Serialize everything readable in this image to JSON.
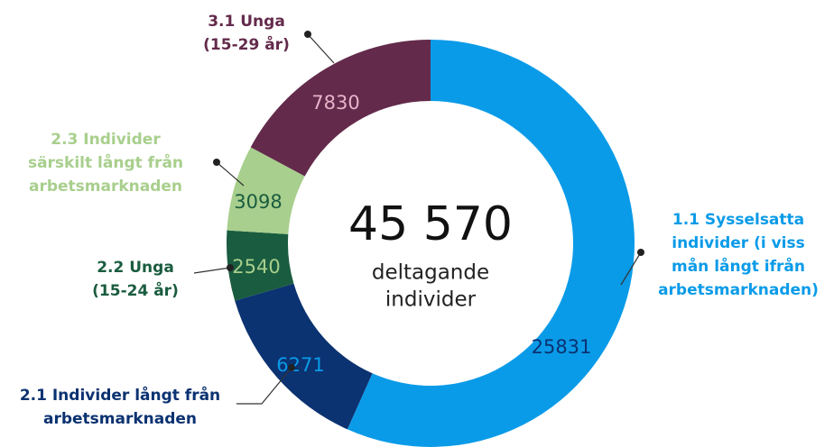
{
  "chart_data": {
    "type": "pie",
    "center_value": "45 570",
    "center_text": [
      "deltagande",
      "individer"
    ],
    "categories": [
      [
        "1.1 Sysselsatta",
        "individer (i viss",
        "mån långt ifrån",
        "arbetsmarknaden)"
      ],
      [
        "2.1 Individer långt från",
        "arbetsmarknaden"
      ],
      [
        "2.2 Unga",
        "(15-24 år)"
      ],
      [
        "2.3 Individer",
        "särskilt långt från",
        "arbetsmarknaden"
      ],
      [
        "3.1 Unga",
        "(15-29 år)"
      ]
    ],
    "values": [
      25831,
      6271,
      2540,
      3098,
      7830
    ],
    "colors": [
      "#0a9be8",
      "#0b3271",
      "#1a5c3f",
      "#a8cf8d",
      "#632a4b"
    ],
    "value_label_colors": [
      "#0b3271",
      "#0a9be8",
      "#a8cf8d",
      "#1a5c3f",
      "#e7b3c9"
    ]
  }
}
